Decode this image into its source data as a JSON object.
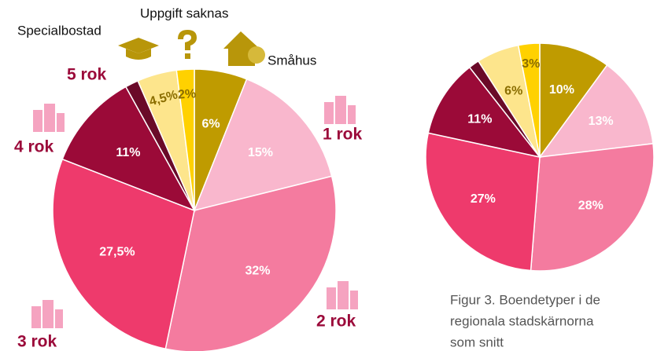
{
  "chart_data": [
    {
      "type": "pie",
      "categories": [
        "Småhus",
        "1 rok",
        "2 rok",
        "3 rok",
        "4 rok",
        "5 rok",
        "Specialbostad",
        "Uppgift saknas"
      ],
      "values": [
        6,
        15,
        32,
        27.5,
        11,
        1.5,
        4.5,
        2
      ],
      "value_labels": [
        "6%",
        "15%",
        "32%",
        "27,5%",
        "11%",
        null,
        "4,5%",
        "2%"
      ],
      "colors": [
        "#bf9b00",
        "#f9b7cd",
        "#f47b9f",
        "#ee3a6c",
        "#9b0a38",
        "#6a0a28",
        "#fde58c",
        "#ffd100"
      ]
    },
    {
      "type": "pie",
      "values": [
        10,
        13,
        28,
        27,
        11,
        1.5,
        6,
        3
      ],
      "value_labels": [
        "10%",
        "13%",
        "28%",
        "27%",
        "11%",
        null,
        "6%",
        "3%"
      ],
      "colors": [
        "#bf9b00",
        "#f9b7cd",
        "#f47b9f",
        "#ee3a6c",
        "#9b0a38",
        "#6a0a28",
        "#fde58c",
        "#ffd100"
      ],
      "caption": [
        "Figur 3. Boendetyper i de",
        "regionala stadskärnorna",
        "som snitt"
      ]
    }
  ]
}
